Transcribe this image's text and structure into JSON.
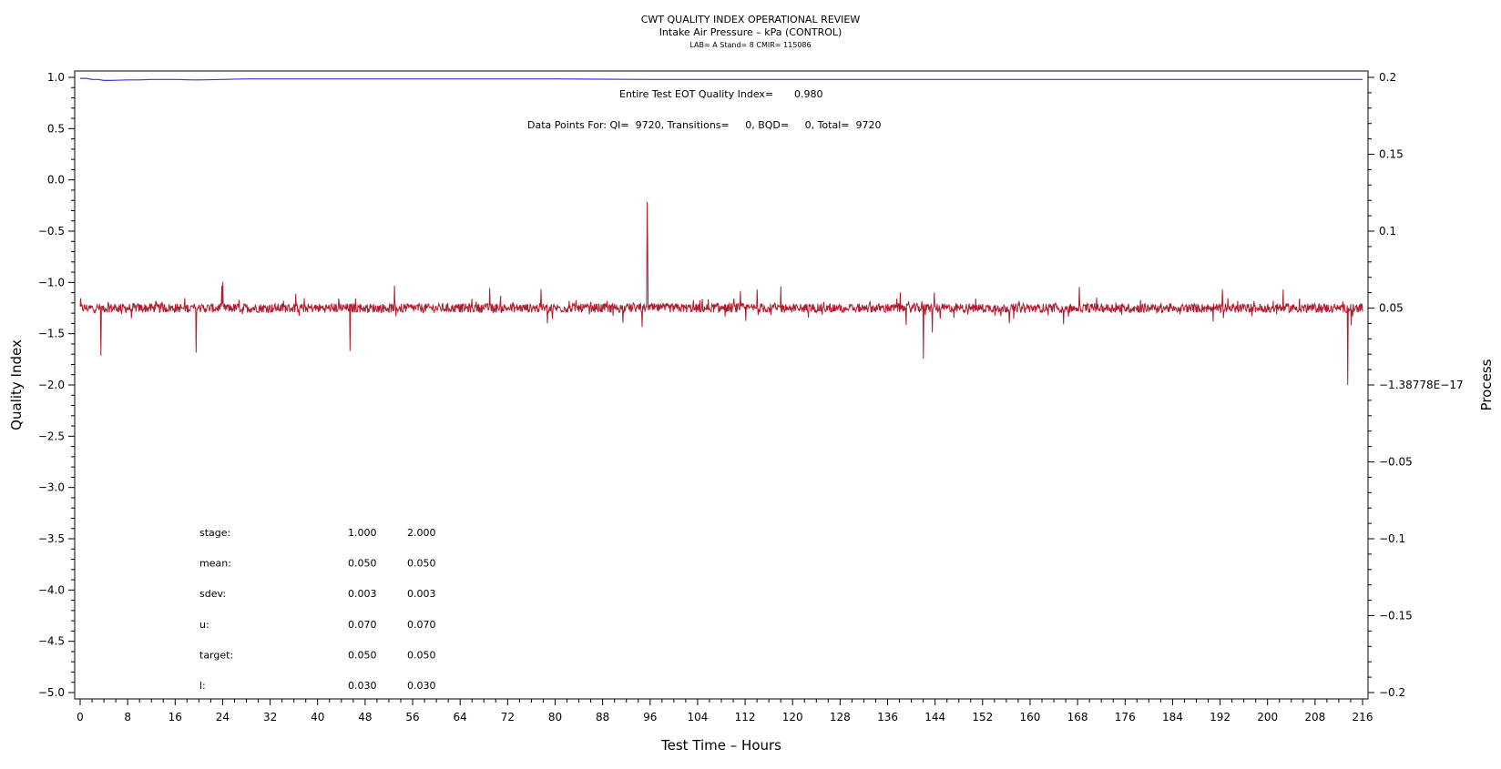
{
  "chart_data": {
    "type": "line",
    "title": "CWT QUALITY INDEX OPERATIONAL REVIEW",
    "subtitle": "Intake Air Pressure – kPa (CONTROL)",
    "subtitle2": "LAB= A Stand= 8 CMIR= 115086",
    "xlabel": "Test Time – Hours",
    "ylabel": "Quality Index",
    "y2label": "Process",
    "xlim": [
      0,
      216
    ],
    "ylim": [
      -5.0,
      1.0
    ],
    "y2lim": [
      -0.2,
      0.2
    ],
    "x_ticks": [
      0,
      8,
      16,
      24,
      32,
      40,
      48,
      56,
      64,
      72,
      80,
      88,
      96,
      104,
      112,
      120,
      128,
      136,
      144,
      152,
      160,
      168,
      176,
      184,
      192,
      200,
      208,
      216
    ],
    "y_ticks": [
      1.0,
      0.5,
      0.0,
      -0.5,
      -1.0,
      -1.5,
      -2.0,
      -2.5,
      -3.0,
      -3.5,
      -4.0,
      -4.5,
      -5.0
    ],
    "y_tick_labels": [
      "1.0",
      "0.5",
      "0.0",
      "−0.5",
      "−1.0",
      "−1.5",
      "−2.0",
      "−2.5",
      "−3.0",
      "−3.5",
      "−4.0",
      "−4.5",
      "−5.0"
    ],
    "y2_ticks": [
      0.2,
      0.15,
      0.1,
      0.05,
      0,
      -0.05,
      -0.1,
      -0.15,
      -0.2
    ],
    "y2_tick_labels": [
      "0.2",
      "0.15",
      "0.1",
      "0.05",
      "−1.38778E−17",
      "−0.05",
      "−0.1",
      "−0.15",
      "−0.2"
    ],
    "grid": false,
    "series": [
      {
        "axis": "left",
        "color": "#3a3ad6",
        "x": [
          0,
          1,
          2,
          3,
          4,
          5,
          8,
          10,
          12,
          16,
          19,
          20,
          24,
          28,
          40,
          60,
          80,
          96,
          120,
          160,
          216
        ],
        "values": [
          0.99,
          0.99,
          0.98,
          0.98,
          0.97,
          0.97,
          0.975,
          0.975,
          0.98,
          0.98,
          0.975,
          0.975,
          0.98,
          0.985,
          0.985,
          0.985,
          0.985,
          0.98,
          0.98,
          0.98,
          0.98
        ]
      },
      {
        "axis": "right",
        "color": "#b01c2e",
        "baseline": 0.05,
        "spikes_x": [
          3.5,
          19.5,
          24,
          45.5,
          69,
          95.5,
          95.6,
          114,
          118,
          142,
          143.5,
          213.5
        ],
        "spikes_y": [
          0.019,
          0.021,
          0.067,
          0.022,
          0.063,
          0.119,
          0.097,
          0.062,
          0.064,
          0.017,
          0.034,
          0.0
        ]
      }
    ]
  },
  "annotations": {
    "eot_label": "Entire Test EOT Quality Index=",
    "eot_value": "0.980",
    "datapoints_text": "Data Points For: QI=  9720, Transitions=     0, BQD=     0, Total=  9720"
  },
  "stats_table": {
    "rows": [
      {
        "label": "stage:",
        "v1": "1.000",
        "v2": "2.000"
      },
      {
        "label": "mean:",
        "v1": "0.050",
        "v2": "0.050"
      },
      {
        "label": "sdev:",
        "v1": "0.003",
        "v2": "0.003"
      },
      {
        "label": "u:",
        "v1": "0.070",
        "v2": "0.070"
      },
      {
        "label": "target:",
        "v1": "0.050",
        "v2": "0.050"
      },
      {
        "label": "l:",
        "v1": "0.030",
        "v2": "0.030"
      }
    ]
  }
}
